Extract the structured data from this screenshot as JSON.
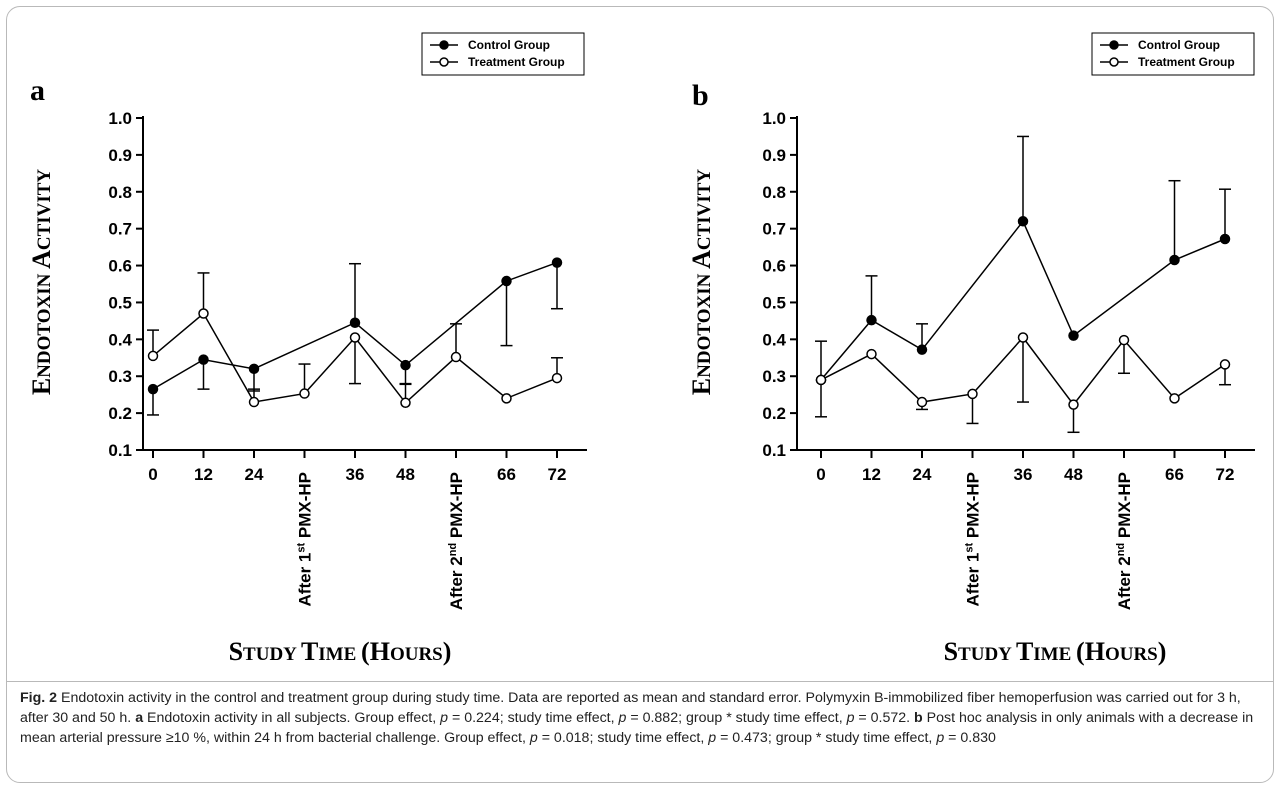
{
  "chart_data": [
    {
      "type": "line",
      "panel_letter": "a",
      "xlabel": "Study Time (Hours)",
      "ylabel": "Endotoxin Activity",
      "ylim": [
        0.1,
        1.0
      ],
      "y_ticks": [
        "0.1",
        "0.2",
        "0.3",
        "0.4",
        "0.5",
        "0.6",
        "0.7",
        "0.8",
        "0.9",
        "1.0"
      ],
      "categories": [
        "0",
        "12",
        "24",
        "After 1st PMX-HP",
        "36",
        "48",
        "After 2nd PMX-HP",
        "66",
        "72"
      ],
      "legend": {
        "position": "top-right",
        "entries": [
          "Control Group",
          "Treatment Group"
        ]
      },
      "series": [
        {
          "name": "Control Group",
          "marker": "filled-circle",
          "values": [
            0.265,
            0.345,
            0.32,
            null,
            0.445,
            0.33,
            null,
            0.558,
            0.608
          ],
          "error": [
            0.07,
            0.08,
            0.06,
            null,
            0.16,
            0.05,
            null,
            0.175,
            0.125
          ],
          "error_direction": [
            -1,
            -1,
            -1,
            0,
            1,
            -1,
            0,
            -1,
            -1
          ]
        },
        {
          "name": "Treatment Group",
          "marker": "open-circle",
          "values": [
            0.355,
            0.47,
            0.23,
            0.253,
            0.405,
            0.228,
            0.352,
            0.24,
            0.295
          ],
          "error": [
            0.07,
            0.11,
            0.035,
            0.08,
            0.125,
            0.05,
            0.09,
            null,
            0.055
          ],
          "error_direction": [
            1,
            1,
            1,
            1,
            -1,
            1,
            1,
            0,
            1
          ]
        }
      ]
    },
    {
      "type": "line",
      "panel_letter": "b",
      "xlabel": "Study Time (Hours)",
      "ylabel": "Endotoxin Activity",
      "ylim": [
        0.1,
        1.0
      ],
      "y_ticks": [
        "0.1",
        "0.2",
        "0.3",
        "0.4",
        "0.5",
        "0.6",
        "0.7",
        "0.8",
        "0.9",
        "1.0"
      ],
      "categories": [
        "0",
        "12",
        "24",
        "After 1st PMX-HP",
        "36",
        "48",
        "After 2nd PMX-HP",
        "66",
        "72"
      ],
      "legend": {
        "position": "top-right",
        "entries": [
          "Control Group",
          "Treatment Group"
        ]
      },
      "series": [
        {
          "name": "Control Group",
          "marker": "filled-circle",
          "values": [
            0.29,
            0.452,
            0.372,
            null,
            0.72,
            0.41,
            null,
            0.615,
            0.672
          ],
          "error": [
            0.105,
            0.12,
            0.07,
            null,
            0.23,
            null,
            null,
            0.215,
            0.135
          ],
          "error_direction": [
            1,
            1,
            1,
            0,
            1,
            0,
            0,
            1,
            1
          ]
        },
        {
          "name": "Treatment Group",
          "marker": "open-circle",
          "values": [
            0.29,
            0.36,
            0.23,
            0.252,
            0.405,
            0.223,
            0.398,
            0.24,
            0.332
          ],
          "error": [
            0.1,
            null,
            0.02,
            0.08,
            0.175,
            0.075,
            0.09,
            null,
            0.055
          ],
          "error_direction": [
            -1,
            0,
            -1,
            -1,
            -1,
            -1,
            -1,
            0,
            -1
          ]
        }
      ]
    }
  ],
  "caption": {
    "fig_label": "Fig. 2",
    "text_1": "Endotoxin activity in the control and treatment group during study time. Data are reported as mean and standard error. Polymyxin B-immobilized fiber hemoperfusion was carried out for 3 h, after 30 and 50 h.",
    "label_a": "a",
    "text_a": "Endotoxin activity in all subjects. Group effect, p = 0.224; study time effect, p = 0.882; group * study time effect, p = 0.572.",
    "label_b": "b",
    "text_b": "Post hoc analysis in only animals with a decrease in mean arterial pressure ≥10 %, within 24 h from bacterial challenge. Group effect, p = 0.018; study time effect, p = 0.473; group * study time effect, p = 0.830"
  }
}
